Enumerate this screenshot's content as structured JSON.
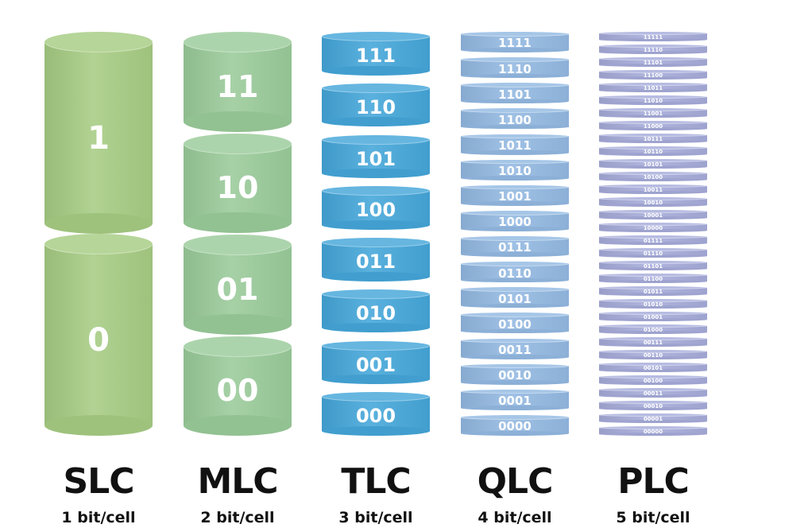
{
  "colors": {
    "slc": "#a6cc83",
    "mlc": "#9acb9a",
    "tlc": "#44a6d9",
    "qlc": "#93b9e2",
    "plc": "#a6acda"
  },
  "cell_types": [
    {
      "name": "SLC",
      "density": "1 bit/cell",
      "levels": [
        "1",
        "0"
      ],
      "color_key": "slc"
    },
    {
      "name": "MLC",
      "density": "2 bit/cell",
      "levels": [
        "11",
        "10",
        "01",
        "00"
      ],
      "color_key": "mlc"
    },
    {
      "name": "TLC",
      "density": "3 bit/cell",
      "levels": [
        "111",
        "110",
        "101",
        "100",
        "011",
        "010",
        "001",
        "000"
      ],
      "color_key": "tlc"
    },
    {
      "name": "QLC",
      "density": "4 bit/cell",
      "levels": [
        "1111",
        "1110",
        "1101",
        "1100",
        "1011",
        "1010",
        "1001",
        "1000",
        "0111",
        "0110",
        "0101",
        "0100",
        "0011",
        "0010",
        "0001",
        "0000"
      ],
      "color_key": "qlc"
    },
    {
      "name": "PLC",
      "density": "5 bit/cell",
      "levels": [
        "11111",
        "11110",
        "11101",
        "11100",
        "11011",
        "11010",
        "11001",
        "11000",
        "10111",
        "10110",
        "10101",
        "10100",
        "10011",
        "10010",
        "10001",
        "10000",
        "01111",
        "01110",
        "01101",
        "01100",
        "01011",
        "01010",
        "01001",
        "01000",
        "00111",
        "00110",
        "00101",
        "00100",
        "00011",
        "00010",
        "00001",
        "00000"
      ],
      "color_key": "plc"
    }
  ]
}
